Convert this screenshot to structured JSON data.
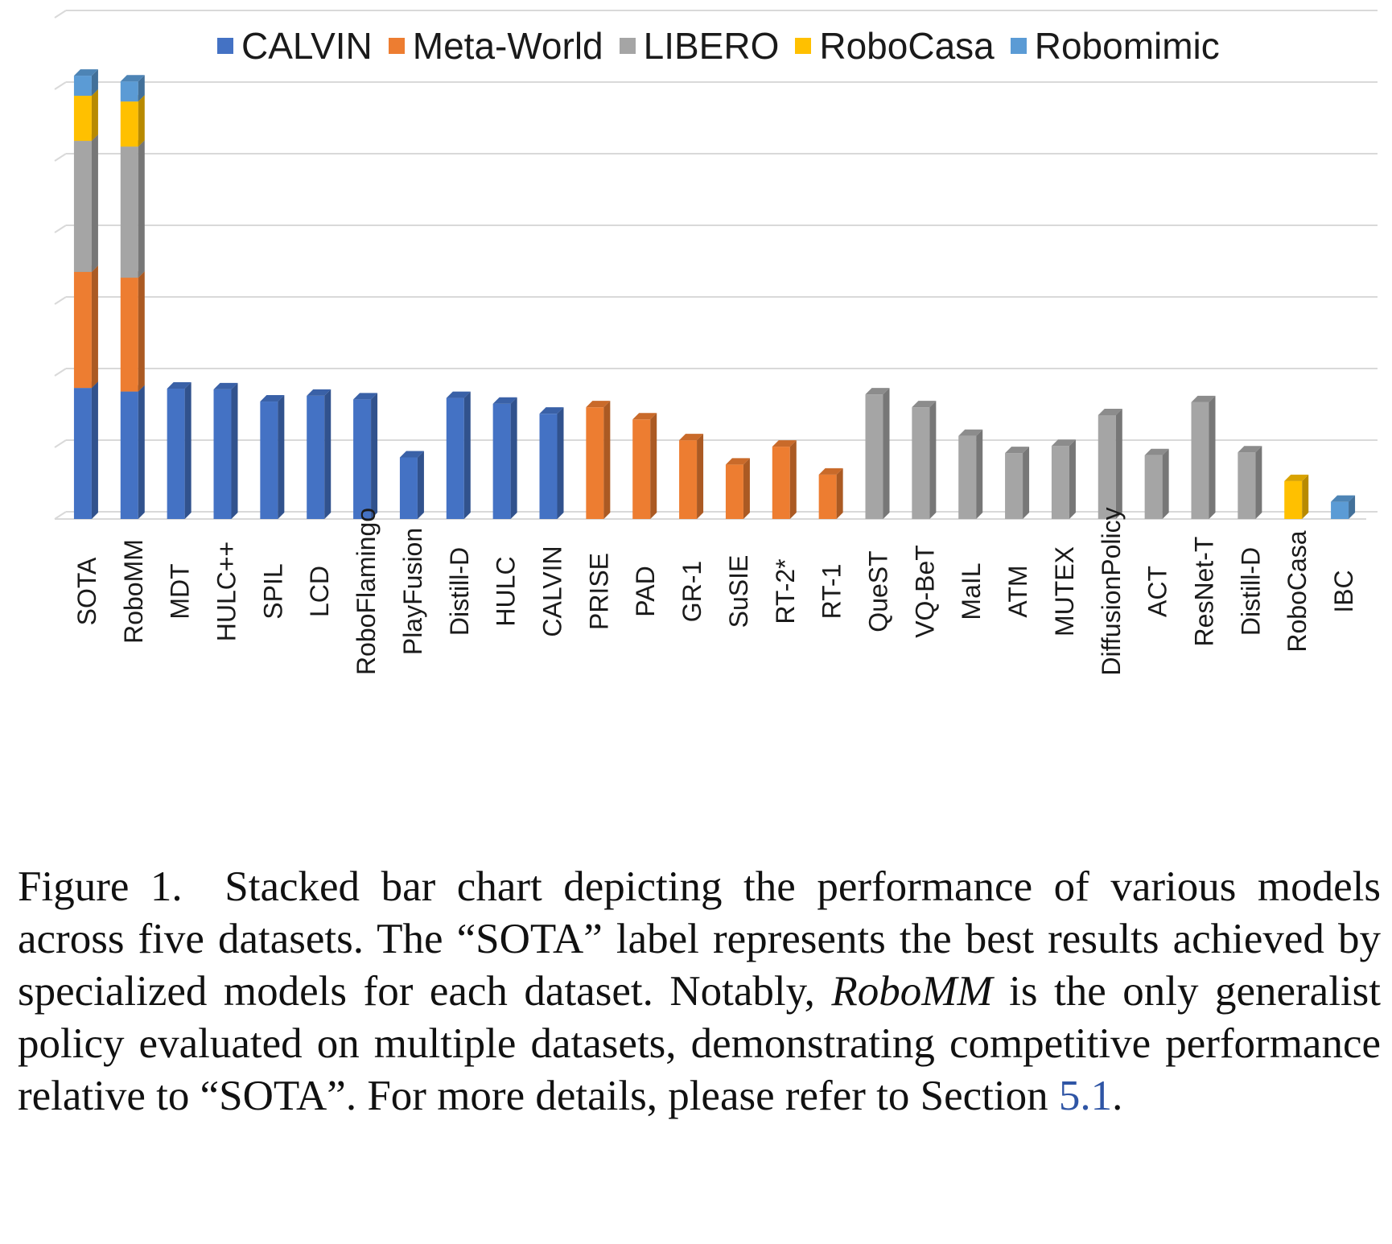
{
  "chart_data": {
    "type": "bar",
    "stacked": true,
    "grid": true,
    "legend_position": "top",
    "ylim": [
      0,
      700
    ],
    "categories": [
      "SOTA",
      "RoboMM",
      "MDT",
      "HULC++",
      "SPIL",
      "LCD",
      "RoboFlamingo",
      "PlayFusion",
      "Distill-D",
      "HULC",
      "CALVIN",
      "PRISE",
      "PAD",
      "GR-1",
      "SuSIE",
      "RT-2*",
      "RT-1",
      "QueST",
      "VQ-BeT",
      "MaIL",
      "ATM",
      "MUTEX",
      "DiffusionPolicy",
      "ACT",
      "ResNet-T",
      "Distill-D",
      "RoboCasa",
      "IBC"
    ],
    "series": [
      {
        "name": "CALVIN",
        "color": "#4472c4",
        "values": [
          183,
          178,
          182,
          181,
          164,
          172,
          167,
          86,
          169,
          161,
          147,
          0,
          0,
          0,
          0,
          0,
          0,
          0,
          0,
          0,
          0,
          0,
          0,
          0,
          0,
          0,
          0,
          0
        ]
      },
      {
        "name": "Meta-World",
        "color": "#ed7d31",
        "values": [
          162,
          159,
          0,
          0,
          0,
          0,
          0,
          0,
          0,
          0,
          0,
          156,
          139,
          110,
          76,
          101,
          62,
          0,
          0,
          0,
          0,
          0,
          0,
          0,
          0,
          0,
          0,
          0
        ]
      },
      {
        "name": "LIBERO",
        "color": "#a5a5a5",
        "values": [
          183,
          183,
          0,
          0,
          0,
          0,
          0,
          0,
          0,
          0,
          0,
          0,
          0,
          0,
          0,
          0,
          0,
          174,
          156,
          116,
          92,
          102,
          145,
          89,
          163,
          93,
          0,
          0
        ]
      },
      {
        "name": "RoboCasa",
        "color": "#ffc000",
        "values": [
          63,
          63,
          0,
          0,
          0,
          0,
          0,
          0,
          0,
          0,
          0,
          0,
          0,
          0,
          0,
          0,
          0,
          0,
          0,
          0,
          0,
          0,
          0,
          0,
          0,
          0,
          53,
          0
        ]
      },
      {
        "name": "Robomimic",
        "color": "#5b9bd5",
        "values": [
          28,
          28,
          0,
          0,
          0,
          0,
          0,
          0,
          0,
          0,
          0,
          0,
          0,
          0,
          0,
          0,
          0,
          0,
          0,
          0,
          0,
          0,
          0,
          0,
          0,
          0,
          0,
          24
        ]
      }
    ]
  },
  "caption": {
    "label": "Figure 1.",
    "text_1": "Stacked bar chart depicting the performance of various models across five datasets. The “SOTA” label represents the best results achieved by specialized models for each dataset. Notably,",
    "emphasis": "RoboMM",
    "text_2": "is the only generalist policy evaluated on multiple datasets, demonstrating competitive performance relative to “SOTA”. For more details, please refer to Section",
    "section_ref": "5.1",
    "text_3": "."
  }
}
